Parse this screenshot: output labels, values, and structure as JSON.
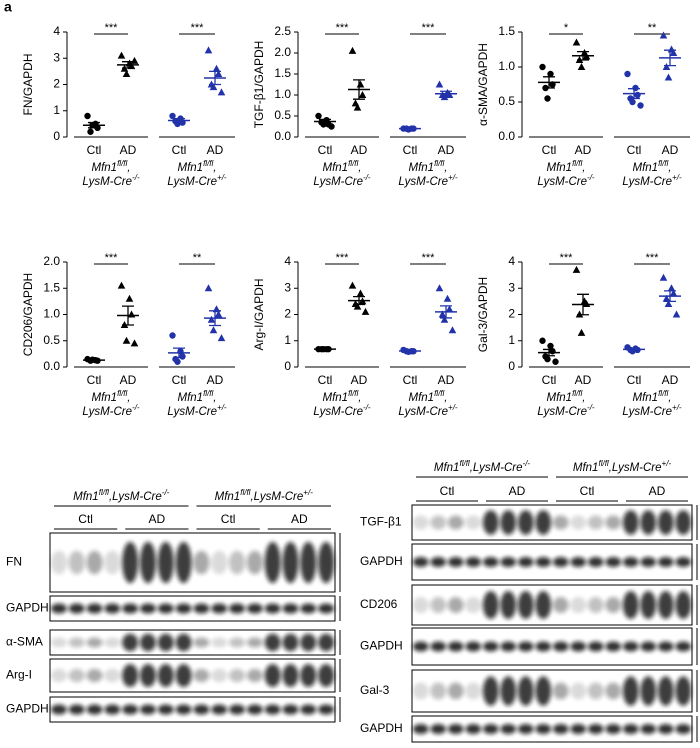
{
  "panel_label": "a",
  "genotypes": [
    {
      "line1": [
        "Mfn1",
        "fl/fl",
        ","
      ],
      "line2": [
        "LysM-Cre",
        "-/-"
      ]
    },
    {
      "line1": [
        "Mfn1",
        "fl/fl",
        ","
      ],
      "line2": [
        "LysM-Cre",
        "+/-"
      ]
    }
  ],
  "chart_data": [
    {
      "type": "dot",
      "y_label": "FN/GAPDH",
      "categories": [
        "Ctl",
        "AD",
        "Ctl",
        "AD"
      ],
      "ylim": [
        0,
        4
      ],
      "yticks": [
        0,
        1,
        2,
        3,
        4
      ],
      "groups": [
        {
          "color": "#000000",
          "marker": "circle",
          "points": [
            0.8,
            0.5,
            0.35,
            0.2,
            0.45
          ],
          "mean": 0.45,
          "sem": 0.1
        },
        {
          "color": "#000000",
          "marker": "triangle",
          "points": [
            3.1,
            2.8,
            2.7,
            2.6,
            2.4,
            2.9
          ],
          "mean": 2.75,
          "sem": 0.12
        },
        {
          "color": "#2233aa",
          "marker": "circle",
          "points": [
            0.8,
            0.7,
            0.55,
            0.6,
            0.5
          ],
          "mean": 0.63,
          "sem": 0.07
        },
        {
          "color": "#2233aa",
          "marker": "triangle",
          "points": [
            3.3,
            2.6,
            2.4,
            2.0,
            1.9,
            1.7
          ],
          "mean": 2.25,
          "sem": 0.25
        }
      ],
      "significance": [
        "***",
        "***"
      ]
    },
    {
      "type": "dot",
      "y_label": "TGF-β1/GAPDH",
      "categories": [
        "Ctl",
        "AD",
        "Ctl",
        "AD"
      ],
      "ylim": [
        0,
        2.5
      ],
      "yticks": [
        {
          "value": 0,
          "label": "0.0"
        },
        0.5,
        {
          "value": 1,
          "label": "1.0"
        },
        1.5,
        {
          "value": 2,
          "label": "2.0"
        },
        2.5
      ],
      "groups": [
        {
          "color": "#000000",
          "marker": "circle",
          "points": [
            0.5,
            0.4,
            0.3,
            0.35,
            0.3,
            0.25
          ],
          "mean": 0.37,
          "sem": 0.05
        },
        {
          "color": "#000000",
          "marker": "triangle",
          "points": [
            2.05,
            1.25,
            1.0,
            0.8,
            0.7
          ],
          "mean": 1.13,
          "sem": 0.23
        },
        {
          "color": "#2233aa",
          "marker": "circle",
          "points": [
            0.2,
            0.2,
            0.2,
            0.2,
            0.18
          ],
          "mean": 0.2,
          "sem": 0.01
        },
        {
          "color": "#2233aa",
          "marker": "triangle",
          "points": [
            1.25,
            1.05,
            1.0,
            1.0,
            0.95
          ],
          "mean": 1.03,
          "sem": 0.06
        }
      ],
      "significance": [
        "***",
        "***"
      ]
    },
    {
      "type": "dot",
      "y_label": "α-SMA/GAPDH",
      "categories": [
        "Ctl",
        "AD",
        "Ctl",
        "AD"
      ],
      "ylim": [
        0,
        1.5
      ],
      "yticks": [
        {
          "value": 0,
          "label": "0.0"
        },
        0.5,
        {
          "value": 1,
          "label": "1.0"
        },
        1.5
      ],
      "groups": [
        {
          "color": "#000000",
          "marker": "circle",
          "points": [
            1.0,
            0.9,
            0.75,
            0.7,
            0.55
          ],
          "mean": 0.78,
          "sem": 0.08
        },
        {
          "color": "#000000",
          "marker": "triangle",
          "points": [
            1.35,
            1.2,
            1.15,
            1.1,
            1.0
          ],
          "mean": 1.16,
          "sem": 0.06
        },
        {
          "color": "#2233aa",
          "marker": "circle",
          "points": [
            0.9,
            0.7,
            0.6,
            0.55,
            0.5,
            0.45
          ],
          "mean": 0.62,
          "sem": 0.07
        },
        {
          "color": "#2233aa",
          "marker": "triangle",
          "points": [
            1.45,
            1.25,
            1.2,
            1.0,
            0.85
          ],
          "mean": 1.13,
          "sem": 0.11
        }
      ],
      "significance": [
        "*",
        "**"
      ]
    },
    {
      "type": "dot",
      "y_label": "CD206/GAPDH",
      "categories": [
        "Ctl",
        "AD",
        "Ctl",
        "AD"
      ],
      "ylim": [
        0,
        2
      ],
      "yticks": [
        {
          "value": 0,
          "label": "0.0"
        },
        0.5,
        {
          "value": 1,
          "label": "1.0"
        },
        1.5,
        {
          "value": 2,
          "label": "2.0"
        }
      ],
      "groups": [
        {
          "color": "#000000",
          "marker": "circle",
          "points": [
            0.15,
            0.13,
            0.12,
            0.12,
            0.14
          ],
          "mean": 0.13,
          "sem": 0.01
        },
        {
          "color": "#000000",
          "marker": "triangle",
          "points": [
            1.55,
            1.3,
            1.0,
            0.8,
            0.5,
            0.45
          ],
          "mean": 0.98,
          "sem": 0.18
        },
        {
          "color": "#2233aa",
          "marker": "circle",
          "points": [
            0.6,
            0.3,
            0.2,
            0.15,
            0.1
          ],
          "mean": 0.27,
          "sem": 0.09
        },
        {
          "color": "#2233aa",
          "marker": "triangle",
          "points": [
            1.5,
            1.1,
            1.0,
            0.9,
            0.7,
            0.55
          ],
          "mean": 0.93,
          "sem": 0.14
        }
      ],
      "significance": [
        "***",
        "**"
      ]
    },
    {
      "type": "dot",
      "y_label": "Arg-I/GAPDH",
      "categories": [
        "Ctl",
        "AD",
        "Ctl",
        "AD"
      ],
      "ylim": [
        0,
        4
      ],
      "yticks": [
        0,
        1,
        2,
        3,
        4
      ],
      "groups": [
        {
          "color": "#000000",
          "marker": "circle",
          "points": [
            0.68,
            0.68,
            0.68,
            0.68,
            0.68
          ],
          "mean": 0.68,
          "sem": 0.01
        },
        {
          "color": "#000000",
          "marker": "triangle",
          "points": [
            3.1,
            2.8,
            2.5,
            2.4,
            2.3,
            2.1
          ],
          "mean": 2.53,
          "sem": 0.15
        },
        {
          "color": "#2233aa",
          "marker": "circle",
          "points": [
            0.65,
            0.6,
            0.6,
            0.6,
            0.58
          ],
          "mean": 0.61,
          "sem": 0.02
        },
        {
          "color": "#2233aa",
          "marker": "triangle",
          "points": [
            3.0,
            2.6,
            2.2,
            2.0,
            1.8,
            1.4
          ],
          "mean": 2.1,
          "sem": 0.23
        }
      ],
      "significance": [
        "***",
        "***"
      ]
    },
    {
      "type": "dot",
      "y_label": "Gal-3/GAPDH",
      "categories": [
        "Ctl",
        "AD",
        "Ctl",
        "AD"
      ],
      "ylim": [
        0,
        4
      ],
      "yticks": [
        0,
        1,
        2,
        3,
        4
      ],
      "groups": [
        {
          "color": "#000000",
          "marker": "circle",
          "points": [
            1.0,
            0.8,
            0.6,
            0.4,
            0.3,
            0.2
          ],
          "mean": 0.55,
          "sem": 0.12
        },
        {
          "color": "#000000",
          "marker": "triangle",
          "points": [
            3.7,
            2.5,
            2.4,
            2.0,
            1.3
          ],
          "mean": 2.38,
          "sem": 0.39
        },
        {
          "color": "#2233aa",
          "marker": "circle",
          "points": [
            0.75,
            0.7,
            0.65,
            0.65,
            0.6
          ],
          "mean": 0.67,
          "sem": 0.03
        },
        {
          "color": "#2233aa",
          "marker": "triangle",
          "points": [
            3.4,
            3.0,
            2.8,
            2.6,
            2.4,
            2.0
          ],
          "mean": 2.7,
          "sem": 0.2
        }
      ],
      "significance": [
        "***",
        "***"
      ]
    }
  ],
  "blots": [
    {
      "groups": [
        "Ctl",
        "AD",
        "Ctl",
        "AD"
      ],
      "rows": [
        "FN",
        "GAPDH",
        "α-SMA",
        "Arg-I",
        "GAPDH"
      ]
    },
    {
      "groups": [
        "Ctl",
        "AD",
        "Ctl",
        "AD"
      ],
      "rows": [
        "TGF-β1",
        "GAPDH",
        "CD206",
        "GAPDH",
        "Gal-3",
        "GAPDH"
      ]
    }
  ]
}
